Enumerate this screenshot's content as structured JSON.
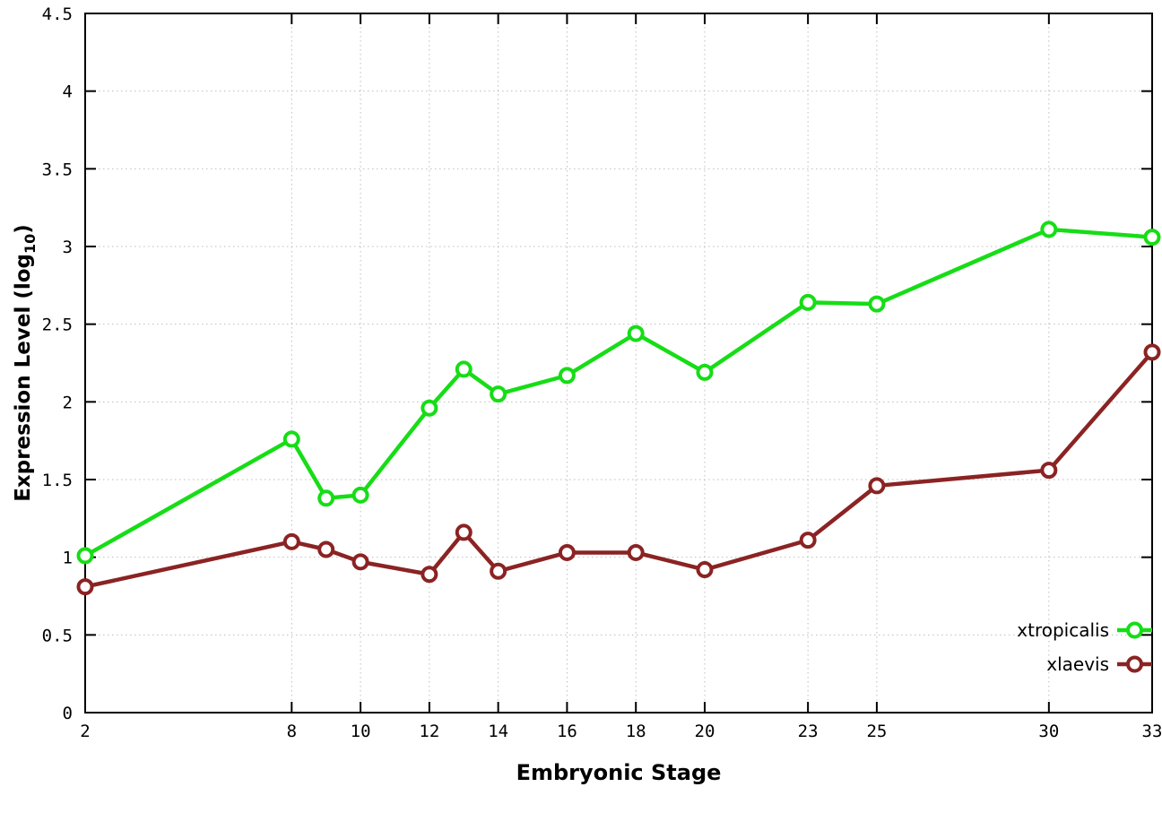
{
  "page": {
    "background": "#ffffff"
  },
  "chart_data": {
    "type": "line",
    "title": "",
    "xlabel": "Embryonic Stage",
    "ylabel_prefix": "Expression Level (log",
    "ylabel_sub": "10",
    "ylabel_suffix": ")",
    "x": [
      2,
      8,
      9,
      10,
      12,
      13,
      14,
      16,
      18,
      20,
      23,
      25,
      30,
      33
    ],
    "xticks": [
      2,
      8,
      10,
      12,
      14,
      16,
      18,
      20,
      23,
      25,
      30,
      33
    ],
    "yticks": [
      0,
      0.5,
      1,
      1.5,
      2,
      2.5,
      3,
      3.5,
      4,
      4.5
    ],
    "xlim": [
      2,
      33
    ],
    "ylim": [
      0,
      4.5
    ],
    "grid": true,
    "grid_color": "#bdbdbd",
    "axis_color": "#000000",
    "legend_position": "bottom-right",
    "series": [
      {
        "name": "xtropicalis",
        "color": "#16dd16",
        "values": [
          1.01,
          1.76,
          1.38,
          1.4,
          1.96,
          2.21,
          2.05,
          2.17,
          2.44,
          2.19,
          2.64,
          2.63,
          3.11,
          3.06
        ]
      },
      {
        "name": "xlaevis",
        "color": "#8b2323",
        "values": [
          0.81,
          1.1,
          1.05,
          0.97,
          0.89,
          1.16,
          0.91,
          1.03,
          1.03,
          0.92,
          1.11,
          1.46,
          1.56,
          2.32
        ]
      }
    ]
  }
}
